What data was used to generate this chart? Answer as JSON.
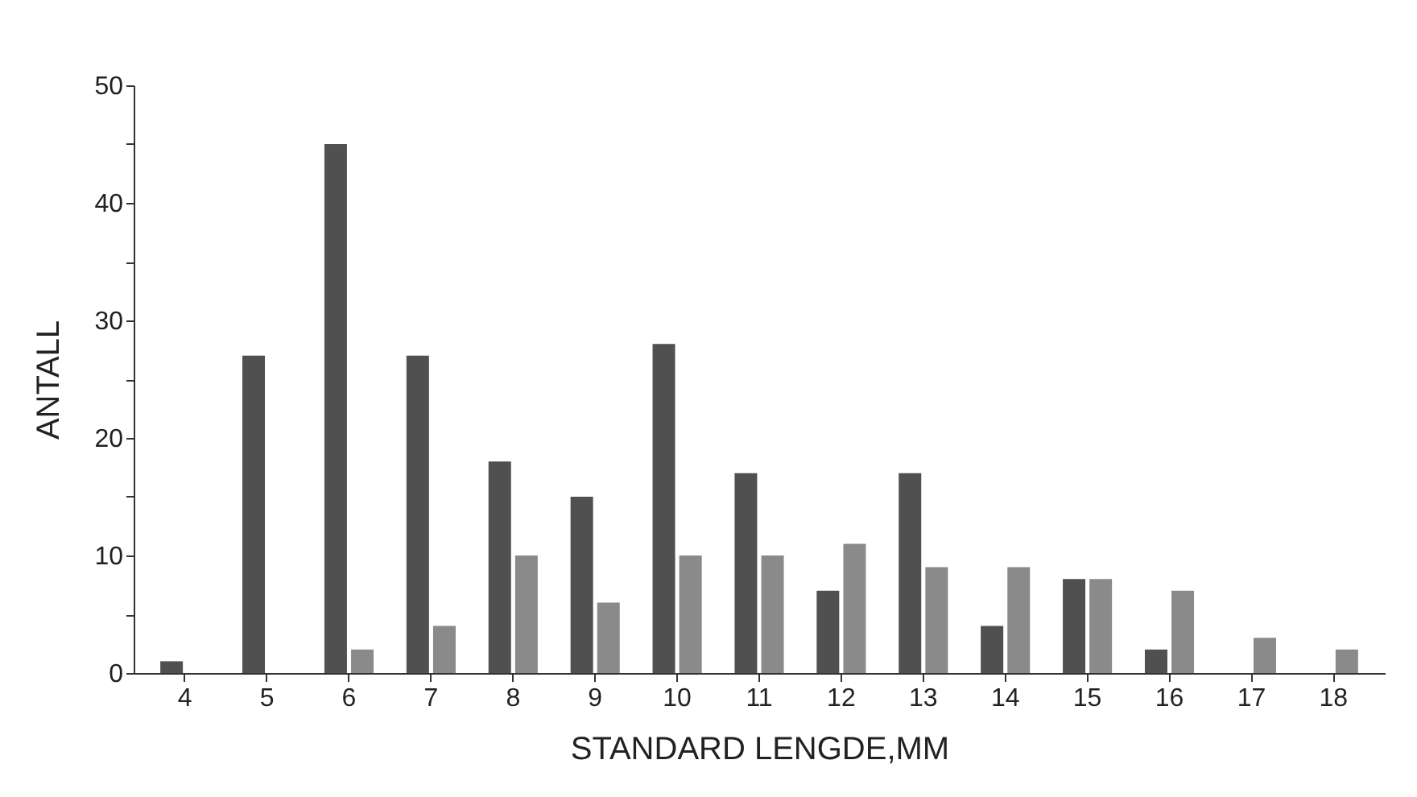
{
  "chart_data": {
    "type": "bar",
    "xlabel": "STANDARD LENGDE,MM",
    "ylabel": "ANTALL",
    "categories": [
      "4",
      "5",
      "6",
      "7",
      "8",
      "9",
      "10",
      "11",
      "12",
      "13",
      "14",
      "15",
      "16",
      "17",
      "18"
    ],
    "series": [
      {
        "color": "#505050",
        "values": [
          1,
          27,
          45,
          27,
          18,
          15,
          28,
          17,
          7,
          17,
          4,
          8,
          2,
          null,
          null
        ]
      },
      {
        "color": "#8a8a8a",
        "values": [
          null,
          null,
          2,
          4,
          10,
          6,
          10,
          10,
          11,
          9,
          9,
          8,
          7,
          3,
          2
        ]
      }
    ],
    "ylim": [
      0,
      50
    ],
    "yticks": [
      0,
      {
        "value": 5,
        "label": null
      },
      10,
      {
        "value": 15,
        "label": null
      },
      20,
      {
        "value": 25,
        "label": null
      },
      30,
      {
        "value": 35,
        "label": null
      },
      40,
      {
        "value": 45,
        "label": null
      },
      50
    ],
    "grid": false,
    "legend": false
  }
}
